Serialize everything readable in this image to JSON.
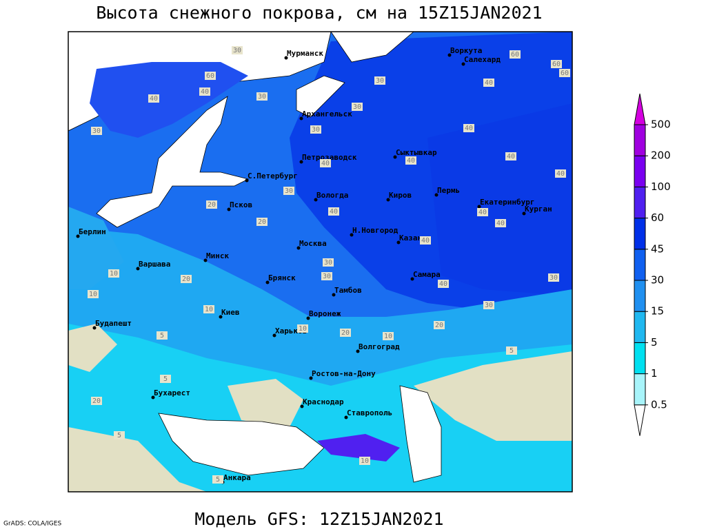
{
  "header": {
    "title": "Высота снежного покрова, см на 15Z15JAN2021"
  },
  "footer": {
    "model": "Модель GFS: 12Z15JAN2021",
    "credit": "GrADS: COLA/IGES"
  },
  "colorbar": {
    "levels": [
      0.5,
      1,
      5,
      15,
      30,
      45,
      60,
      100,
      200,
      500
    ],
    "colors": [
      "#ffffff",
      "#a8f4fa",
      "#00e0f0",
      "#20b8f0",
      "#2090f0",
      "#1060f0",
      "#0030e8",
      "#5020f0",
      "#7a00f0",
      "#a000e0",
      "#d400e0"
    ]
  },
  "cities": [
    "Мурманск",
    "Воркута",
    "Салехард",
    "Архангельск",
    "Сыктывкар",
    "Петрозаводск",
    "С.Петербург",
    "Вологда",
    "Киров",
    "Пермь",
    "Екатеринбург",
    "Курган",
    "Псков",
    "Берлин",
    "Москва",
    "Н.Новгород",
    "Казань",
    "Минск",
    "Варшава",
    "Брянск",
    "Самара",
    "Тамбов",
    "Воронеж",
    "Киев",
    "Будапешт",
    "Харьков",
    "Волгоград",
    "Ростов-на-Дону",
    "Бухарест",
    "Краснодар",
    "Ставрополь",
    "Анкара"
  ],
  "contour_labels": [
    30,
    60,
    60,
    60,
    40,
    30,
    30,
    30,
    40,
    40,
    40,
    40,
    40,
    30,
    20,
    40,
    40,
    20,
    40,
    40,
    30,
    30,
    10,
    20,
    10,
    40,
    30,
    30,
    10,
    10,
    20,
    20,
    5,
    5,
    10,
    5,
    20,
    5,
    10,
    5,
    60,
    40,
    40,
    30,
    30
  ]
}
